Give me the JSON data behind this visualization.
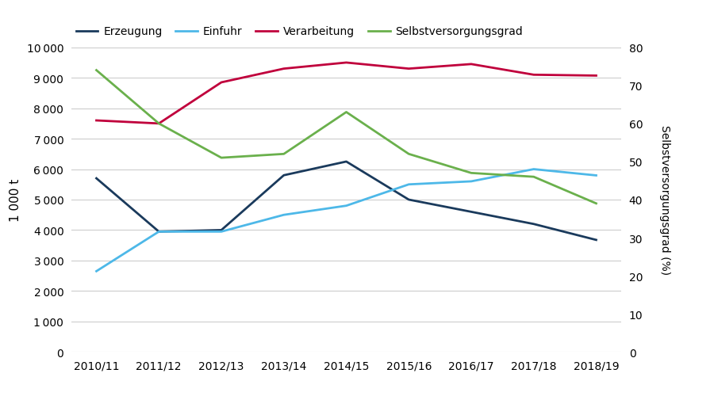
{
  "years": [
    "2010/11",
    "2011/12",
    "2012/13",
    "2013/14",
    "2014/15",
    "2015/16",
    "2016/17",
    "2017/18",
    "2018/19"
  ],
  "erzeugung": [
    5700,
    3950,
    4000,
    5800,
    6250,
    5000,
    4600,
    4200,
    3677
  ],
  "einfuhr": [
    2650,
    3950,
    3950,
    4500,
    4800,
    5500,
    5600,
    6000,
    5795
  ],
  "verarbeitung": [
    7600,
    7500,
    8850,
    9300,
    9500,
    9300,
    9450,
    9100,
    9072
  ],
  "selbstversorgungsgrad": [
    74,
    60,
    51,
    52,
    63,
    52,
    47,
    46,
    39
  ],
  "colors": {
    "erzeugung": "#1a3a5c",
    "einfuhr": "#4db8e8",
    "verarbeitung": "#c0003c",
    "selbstversorgungsgrad": "#6ab04c"
  },
  "ylabel_left": "1 000 t",
  "ylabel_right": "Selbstversorgungsgrad (%)",
  "ylim_left": [
    0,
    10000
  ],
  "ylim_right": [
    0,
    80
  ],
  "yticks_left": [
    0,
    1000,
    2000,
    3000,
    4000,
    5000,
    6000,
    7000,
    8000,
    9000,
    10000
  ],
  "yticks_right": [
    0,
    10,
    20,
    30,
    40,
    50,
    60,
    70,
    80
  ],
  "legend_labels": [
    "Erzeugung",
    "Einfuhr",
    "Verarbeitung",
    "Selbstversorgungsgrad"
  ],
  "background_color": "#ffffff",
  "line_width": 2.0,
  "grid_color": "#cccccc",
  "tick_labelsize": 10
}
